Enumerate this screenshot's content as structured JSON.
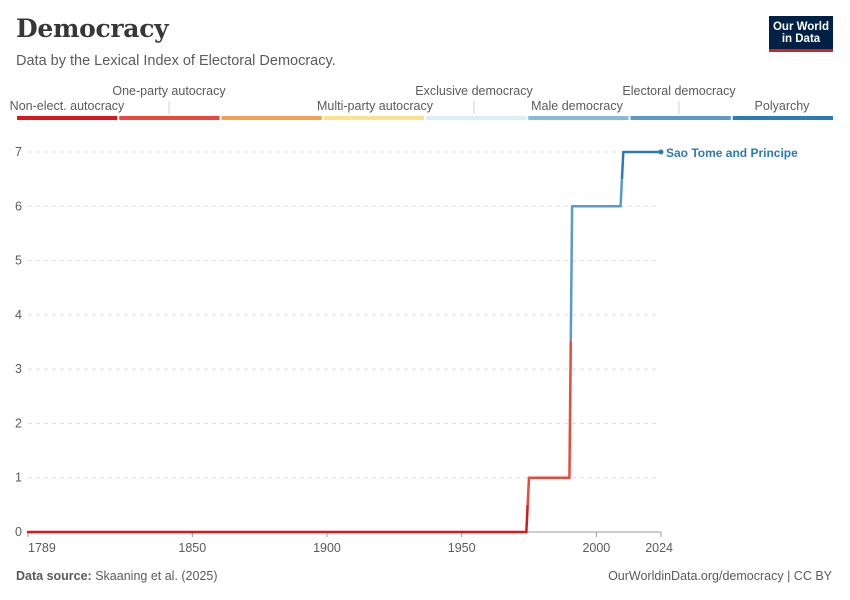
{
  "header": {
    "title": "Democracy",
    "subtitle": "Data by the Lexical Index of Electoral Democracy."
  },
  "logo": {
    "line1": "Our World",
    "line2": "in Data"
  },
  "footer": {
    "source_label": "Data source:",
    "source_text": "Skaaning et al. (2025)",
    "url_text": "OurWorldinData.org/democracy | CC BY"
  },
  "chart_data": {
    "type": "line",
    "title": "Democracy",
    "subtitle": "Data by the Lexical Index of Electoral Democracy.",
    "xlabel": "",
    "ylabel": "",
    "xlim": [
      1789,
      2024
    ],
    "ylim": [
      0,
      7
    ],
    "x_ticks": [
      1789,
      1850,
      1900,
      1950,
      2000,
      2024
    ],
    "y_ticks": [
      0,
      1,
      2,
      3,
      4,
      5,
      6,
      7
    ],
    "grid": "horizontal dashed",
    "legend": [
      {
        "label": "Non-elect. autocracy",
        "color": "#d7191c"
      },
      {
        "label": "One-party autocracy",
        "color": "#e74a3b"
      },
      {
        "label": "Multi-party autocracy",
        "color": "#f69e52"
      },
      {
        "label": "Exclusive democracy",
        "color": "#fde28b"
      },
      {
        "label": "Male democracy",
        "color": "#dbeef9"
      },
      {
        "label": "Electoral democracy",
        "color": "#86bcd9"
      },
      {
        "label": "Polyarchy",
        "color": "#5c9ac9"
      },
      {
        "label": "",
        "color": "#2c7bb6"
      }
    ],
    "series": [
      {
        "name": "Sao Tome and Principe",
        "points": [
          {
            "x": 1789,
            "y": 0
          },
          {
            "x": 1974,
            "y": 0
          },
          {
            "x": 1975,
            "y": 1
          },
          {
            "x": 1990,
            "y": 1
          },
          {
            "x": 1991,
            "y": 6
          },
          {
            "x": 2009,
            "y": 6
          },
          {
            "x": 2010,
            "y": 7
          },
          {
            "x": 2024,
            "y": 7
          }
        ]
      }
    ]
  }
}
